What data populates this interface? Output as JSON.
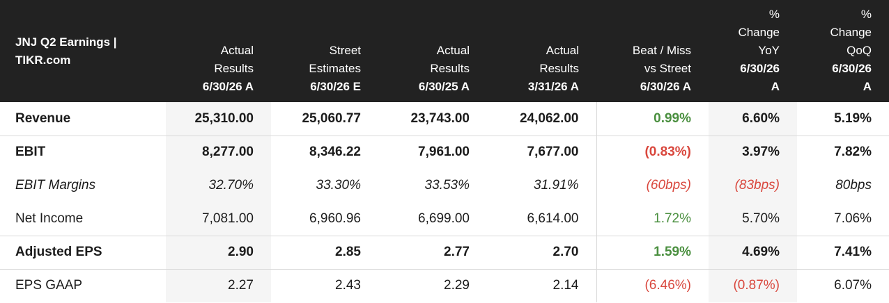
{
  "table": {
    "title": "JNJ Q2 Earnings | TIKR.com",
    "columns": [
      {
        "lines": [
          "Actual",
          "Results"
        ],
        "date": "6/30/26 A"
      },
      {
        "lines": [
          "Street",
          "Estimates"
        ],
        "date": "6/30/26 E"
      },
      {
        "lines": [
          "Actual",
          "Results"
        ],
        "date": "6/30/25 A"
      },
      {
        "lines": [
          "Actual",
          "Results"
        ],
        "date": "3/31/26 A"
      },
      {
        "lines": [
          "Beat / Miss",
          "vs Street"
        ],
        "date": "6/30/26 A"
      },
      {
        "lines": [
          "%",
          "Change",
          "YoY"
        ],
        "date": "6/30/26 A"
      },
      {
        "lines": [
          "%",
          "Change",
          "QoQ"
        ],
        "date": "6/30/26 A"
      }
    ],
    "rows": [
      {
        "label": "Revenue",
        "values": [
          "25,310.00",
          "25,060.77",
          "23,743.00",
          "24,062.00",
          "0.99%",
          "6.60%",
          "5.19%"
        ]
      },
      {
        "label": "EBIT",
        "values": [
          "8,277.00",
          "8,346.22",
          "7,961.00",
          "7,677.00",
          "(0.83%)",
          "3.97%",
          "7.82%"
        ]
      },
      {
        "label": "EBIT Margins",
        "values": [
          "32.70%",
          "33.30%",
          "33.53%",
          "31.91%",
          "(60bps)",
          "(83bps)",
          "80bps"
        ]
      },
      {
        "label": "Net Income",
        "values": [
          "7,081.00",
          "6,960.96",
          "6,699.00",
          "6,614.00",
          "1.72%",
          "5.70%",
          "7.06%"
        ]
      },
      {
        "label": "Adjusted EPS",
        "values": [
          "2.90",
          "2.85",
          "2.77",
          "2.70",
          "1.59%",
          "4.69%",
          "7.41%"
        ]
      },
      {
        "label": "EPS GAAP",
        "values": [
          "2.27",
          "2.43",
          "2.29",
          "2.14",
          "(6.46%)",
          "(0.87%)",
          "6.07%"
        ]
      }
    ]
  },
  "colors": {
    "header_bg": "#222222",
    "positive": "#4a8f3f",
    "negative": "#d9473d",
    "shade": "#f5f5f5"
  }
}
